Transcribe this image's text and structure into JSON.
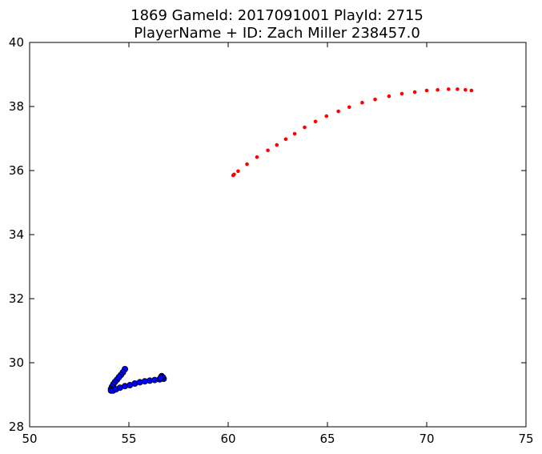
{
  "chart_data": {
    "type": "scatter",
    "title": "1869 GameId: 2017091001 PlayId: 2715",
    "subtitle": "PlayerName + ID: Zach Miller 238457.0",
    "xlabel": "",
    "ylabel": "",
    "xlim": [
      50,
      75
    ],
    "ylim": [
      28,
      40
    ],
    "x_ticks": [
      50,
      55,
      60,
      65,
      70,
      75
    ],
    "y_ticks": [
      28,
      30,
      32,
      34,
      36,
      38,
      40
    ],
    "grid": false,
    "series": [
      {
        "color": "#ff0000",
        "marker": "small-dot",
        "points": [
          [
            60.25,
            35.85
          ],
          [
            60.3,
            35.88
          ],
          [
            60.5,
            35.98
          ],
          [
            60.95,
            36.2
          ],
          [
            61.45,
            36.42
          ],
          [
            62.0,
            36.63
          ],
          [
            62.45,
            36.8
          ],
          [
            62.9,
            36.98
          ],
          [
            63.35,
            37.15
          ],
          [
            63.85,
            37.35
          ],
          [
            64.4,
            37.53
          ],
          [
            64.95,
            37.7
          ],
          [
            65.55,
            37.85
          ],
          [
            66.1,
            37.98
          ],
          [
            66.75,
            38.12
          ],
          [
            67.4,
            38.22
          ],
          [
            68.1,
            38.32
          ],
          [
            68.75,
            38.4
          ],
          [
            69.4,
            38.45
          ],
          [
            70.0,
            38.5
          ],
          [
            70.55,
            38.52
          ],
          [
            71.1,
            38.54
          ],
          [
            71.55,
            38.54
          ],
          [
            71.95,
            38.52
          ],
          [
            72.25,
            38.5
          ]
        ]
      },
      {
        "color": "#0000ff",
        "marker": "circle",
        "points": [
          [
            54.8,
            29.8
          ],
          [
            54.7,
            29.7
          ],
          [
            54.6,
            29.62
          ],
          [
            54.5,
            29.55
          ],
          [
            54.4,
            29.47
          ],
          [
            54.3,
            29.4
          ],
          [
            54.22,
            29.33
          ],
          [
            54.15,
            29.25
          ],
          [
            54.1,
            29.18
          ],
          [
            54.1,
            29.13
          ],
          [
            54.2,
            29.13
          ],
          [
            54.35,
            29.17
          ],
          [
            54.55,
            29.22
          ],
          [
            54.8,
            29.27
          ],
          [
            55.05,
            29.3
          ],
          [
            55.3,
            29.35
          ],
          [
            55.55,
            29.39
          ],
          [
            55.8,
            29.42
          ],
          [
            56.05,
            29.44
          ],
          [
            56.3,
            29.46
          ],
          [
            56.55,
            29.48
          ],
          [
            56.75,
            29.5
          ],
          [
            56.65,
            29.58
          ],
          [
            56.7,
            29.55
          ],
          [
            56.6,
            29.53
          ]
        ]
      }
    ]
  }
}
